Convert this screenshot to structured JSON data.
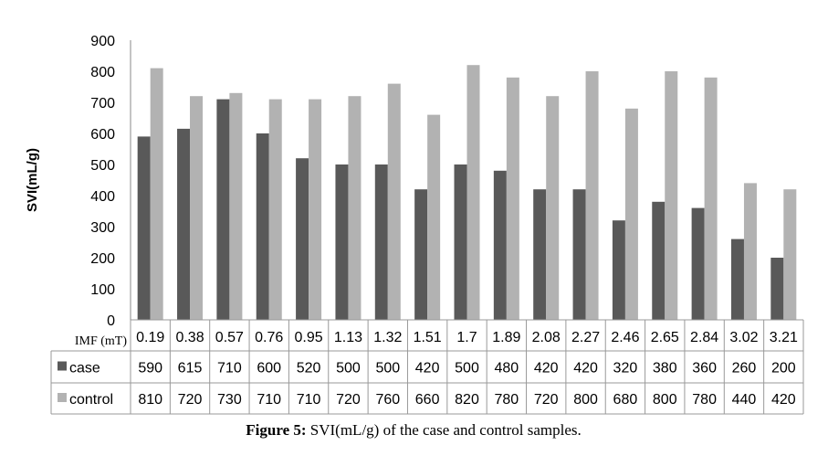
{
  "chart_data": {
    "type": "bar",
    "ylabel": "SVI(mL/g)",
    "xlabel": "IMF (mT)",
    "ylim": [
      0,
      900
    ],
    "yticks": [
      0,
      100,
      200,
      300,
      400,
      500,
      600,
      700,
      800,
      900
    ],
    "categories": [
      "0.19",
      "0.38",
      "0.57",
      "0.76",
      "0.95",
      "1.13",
      "1.32",
      "1.51",
      "1.7",
      "1.89",
      "2.08",
      "2.27",
      "2.46",
      "2.65",
      "2.84",
      "3.02",
      "3.21"
    ],
    "series": [
      {
        "name": "case",
        "color": "#595959",
        "values": [
          590,
          615,
          710,
          600,
          520,
          500,
          500,
          420,
          500,
          480,
          420,
          420,
          320,
          380,
          360,
          260,
          200
        ]
      },
      {
        "name": "control",
        "color": "#b2b2b2",
        "values": [
          810,
          720,
          730,
          710,
          710,
          720,
          760,
          660,
          820,
          780,
          720,
          800,
          680,
          800,
          780,
          440,
          420
        ]
      }
    ],
    "legend": "data-table",
    "grid": false
  },
  "caption": {
    "label": "Figure 5:",
    "text": " SVI(mL/g) of the case and control samples."
  }
}
